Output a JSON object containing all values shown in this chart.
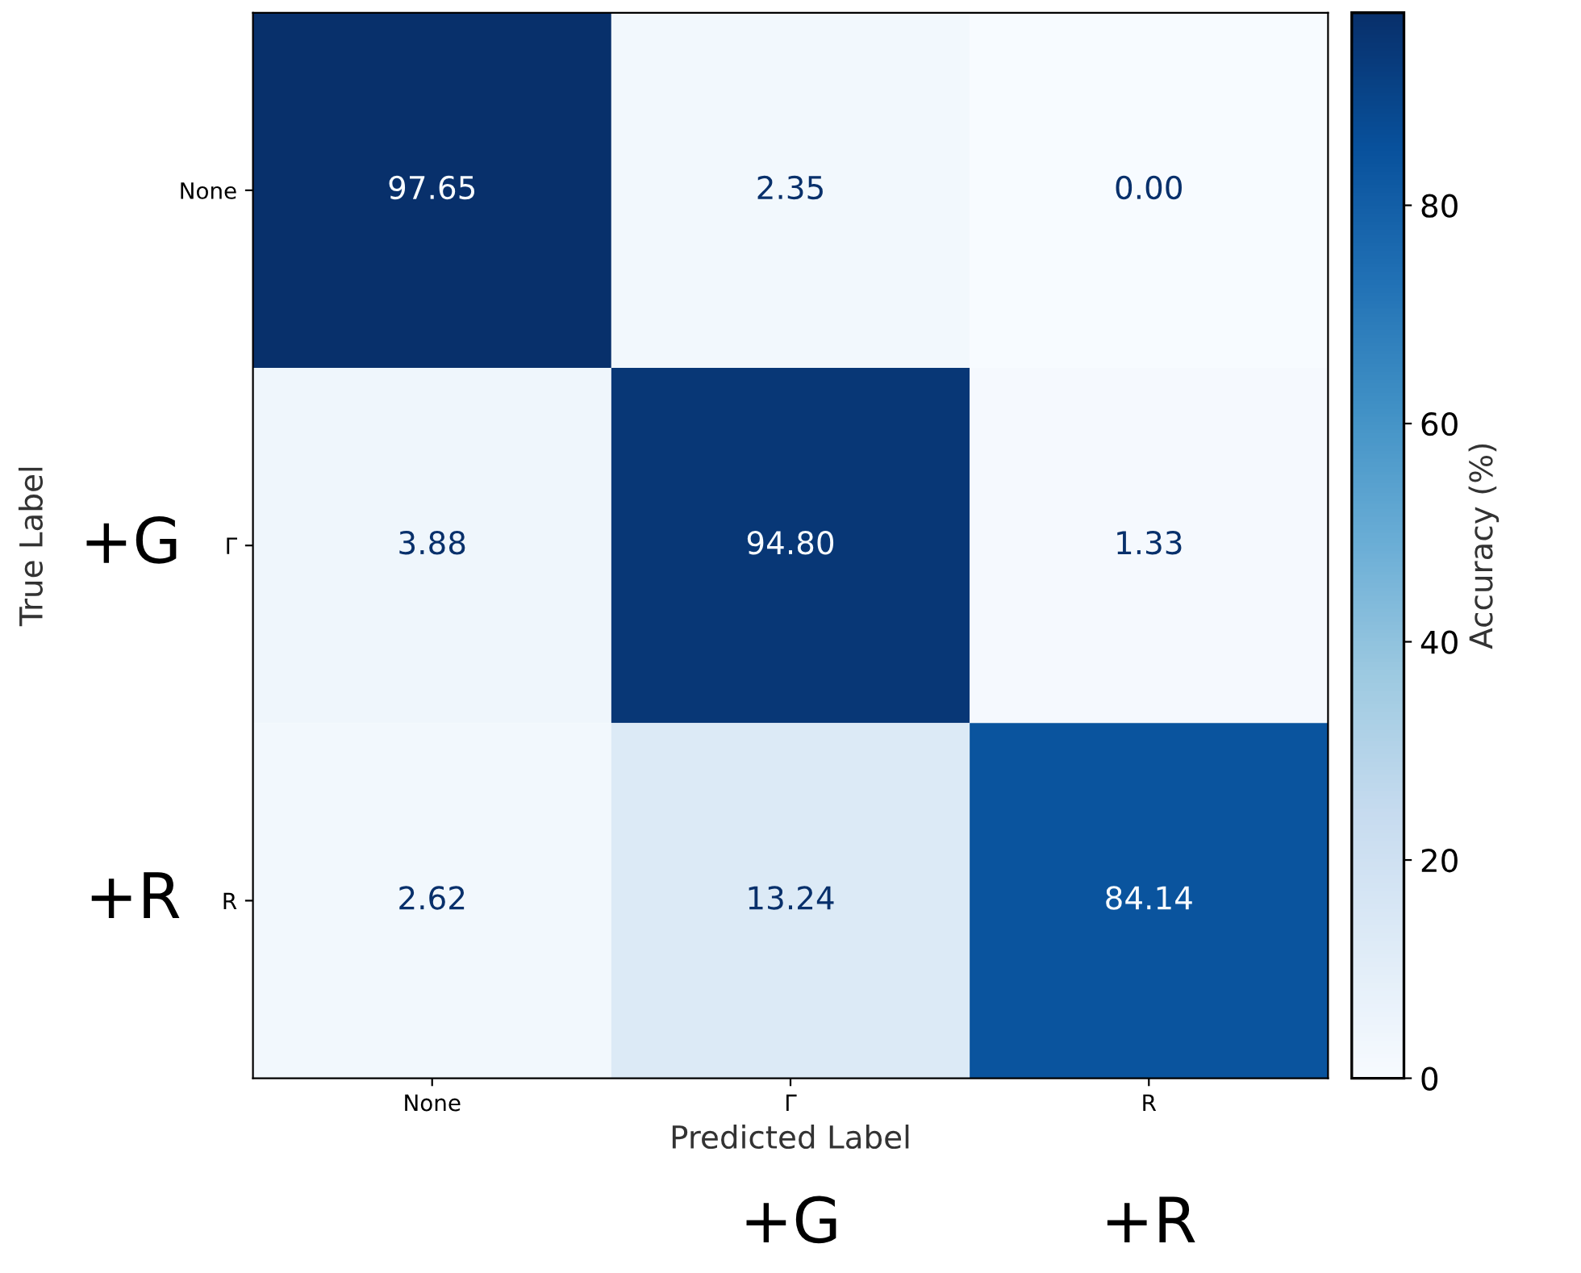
{
  "chart_data": {
    "type": "heatmap",
    "xlabel": "Predicted Label",
    "ylabel": "True Label",
    "clabel": "Accuracy (%)",
    "categories": [
      "None",
      "Γ",
      "R"
    ],
    "y_categories": [
      "None",
      "Γ",
      "R"
    ],
    "cells": [
      [
        97.65,
        2.35,
        0.0
      ],
      [
        3.88,
        94.8,
        1.33
      ],
      [
        2.62,
        13.24,
        84.14
      ]
    ],
    "cell_labels": [
      [
        "97.65",
        "2.35",
        "0.00"
      ],
      [
        "3.88",
        "94.80",
        "1.33"
      ],
      [
        "2.62",
        "13.24",
        "84.14"
      ]
    ],
    "clim": [
      0,
      97.65
    ],
    "cticks": [
      0,
      20,
      40,
      60,
      80
    ],
    "annotations": [
      "+G",
      "+R",
      "+G",
      "+R"
    ]
  }
}
